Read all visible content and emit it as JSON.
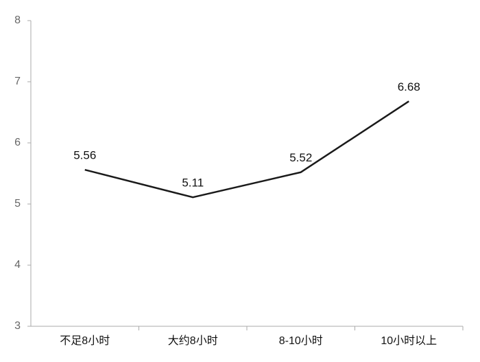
{
  "chart_data": {
    "type": "line",
    "categories": [
      "不足8小时",
      "大约8小时",
      "8-10小时",
      "10小时以上"
    ],
    "values": [
      5.56,
      5.11,
      5.52,
      6.68
    ],
    "color": "#1a1a1a",
    "ylim": [
      3,
      8
    ],
    "yticks": [
      3,
      4,
      5,
      6,
      7,
      8
    ]
  }
}
